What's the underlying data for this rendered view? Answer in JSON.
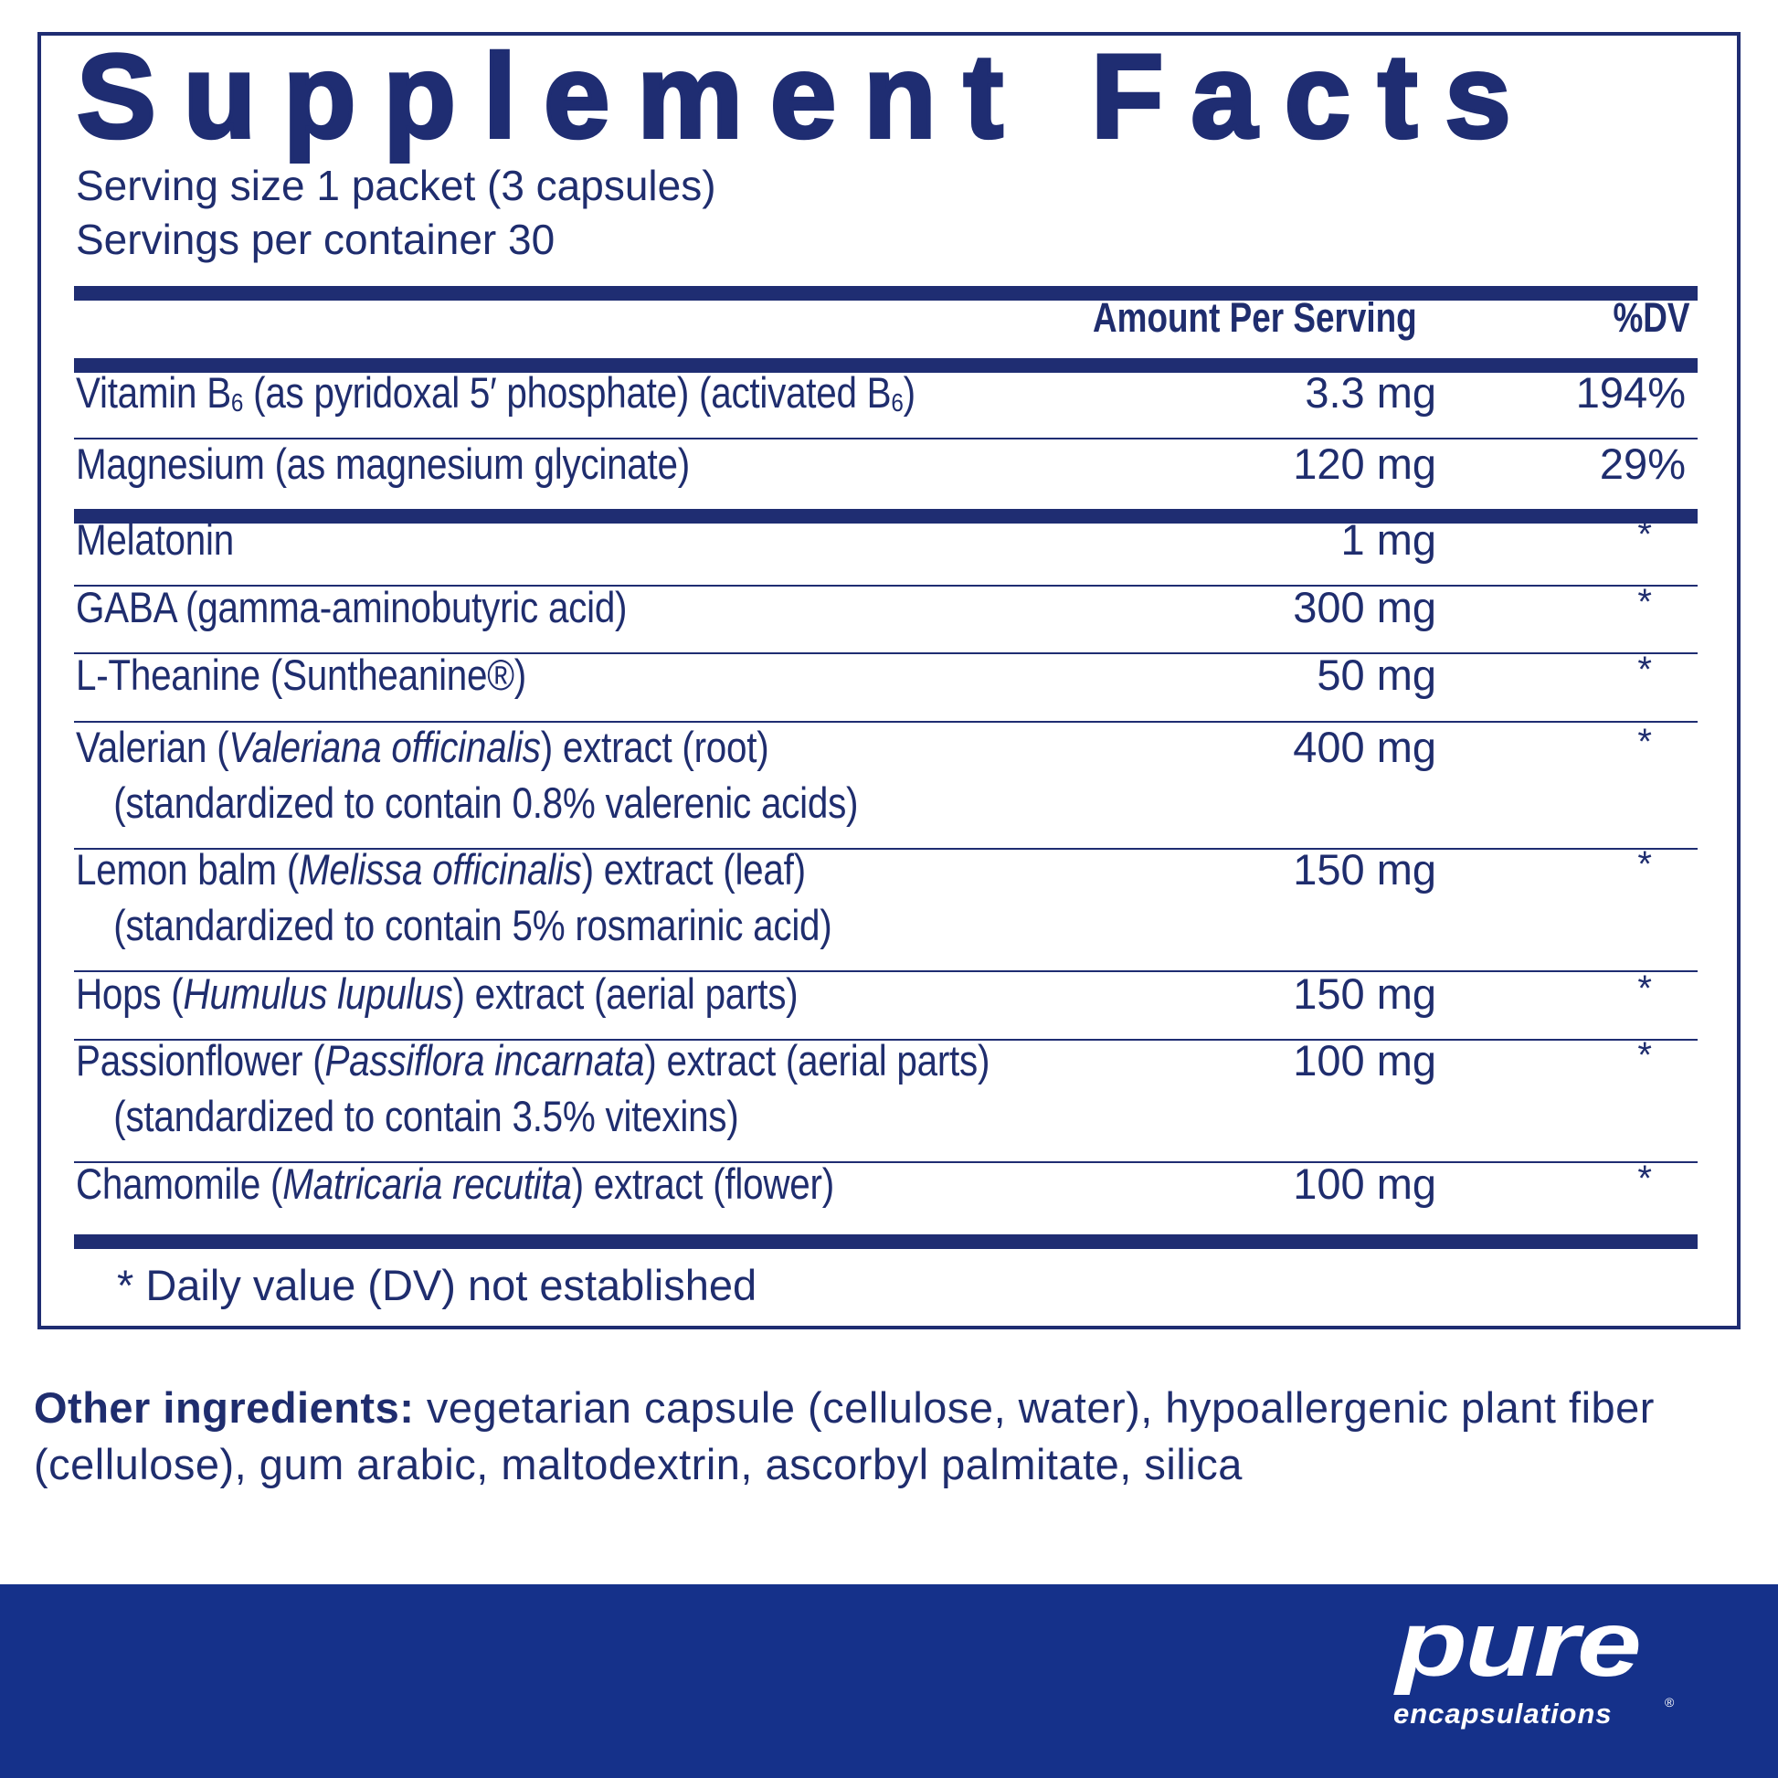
{
  "title": "Supplement Facts",
  "serving_size": "Serving size 1 packet (3 capsules)",
  "servings_per_container": "Servings per container 30",
  "header": {
    "amount": "Amount Per Serving",
    "dv": "%DV"
  },
  "rows": [
    {
      "lines": [
        [
          {
            "t": "Vitamin B"
          },
          {
            "t": "6",
            "sub": true
          },
          {
            "t": " (as pyridoxal 5′ phosphate) (activated B"
          },
          {
            "t": "6",
            "sub": true
          },
          {
            "t": ")"
          }
        ]
      ],
      "amount": "3.3 mg",
      "dv": "194%"
    },
    {
      "lines": [
        [
          {
            "t": "Magnesium (as magnesium glycinate)"
          }
        ]
      ],
      "amount": "120 mg",
      "dv": "29%"
    },
    {
      "lines": [
        [
          {
            "t": "Melatonin"
          }
        ]
      ],
      "amount": "1 mg",
      "dv": "*"
    },
    {
      "lines": [
        [
          {
            "t": "GABA (gamma-aminobutyric acid)"
          }
        ]
      ],
      "amount": "300 mg",
      "dv": "*"
    },
    {
      "lines": [
        [
          {
            "t": "L-Theanine (Suntheanine®)"
          }
        ]
      ],
      "amount": "50 mg",
      "dv": "*"
    },
    {
      "lines": [
        [
          {
            "t": "Valerian ("
          },
          {
            "t": "Valeriana officinalis",
            "i": true
          },
          {
            "t": ") extract (root)"
          }
        ],
        [
          {
            "t": "(standardized to contain 0.8% valerenic acids)"
          }
        ]
      ],
      "amount": "400 mg",
      "dv": "*"
    },
    {
      "lines": [
        [
          {
            "t": "Lemon balm ("
          },
          {
            "t": "Melissa officinalis",
            "i": true
          },
          {
            "t": ") extract (leaf)"
          }
        ],
        [
          {
            "t": "(standardized to contain 5% rosmarinic acid)"
          }
        ]
      ],
      "amount": "150 mg",
      "dv": "*"
    },
    {
      "lines": [
        [
          {
            "t": "Hops ("
          },
          {
            "t": "Humulus lupulus",
            "i": true
          },
          {
            "t": ") extract (aerial parts)"
          }
        ]
      ],
      "amount": "150 mg",
      "dv": "*"
    },
    {
      "lines": [
        [
          {
            "t": "Passionflower ("
          },
          {
            "t": "Passiflora incarnata",
            "i": true
          },
          {
            "t": ") extract (aerial parts)"
          }
        ],
        [
          {
            "t": "(standardized to contain 3.5% vitexins)"
          }
        ]
      ],
      "amount": "100 mg",
      "dv": "*"
    },
    {
      "lines": [
        [
          {
            "t": "Chamomile ("
          },
          {
            "t": "Matricaria recutita",
            "i": true
          },
          {
            "t": ") extract (flower)"
          }
        ]
      ],
      "amount": "100 mg",
      "dv": "*"
    }
  ],
  "footnote": "* Daily value (DV) not established",
  "other_ingredients": {
    "label": "Other ingredients:",
    "text": " vegetarian capsule (cellulose, water), hypoallergenic plant fiber (cellulose), gum arabic, maltodextrin, ascorbyl palmitate, silica"
  },
  "logo": {
    "line1": "pure",
    "line2": "encapsulations",
    "reg": "®"
  },
  "colors": {
    "text": "#1f2d6e",
    "rule": "#1f2d72",
    "band": "#15318a"
  }
}
